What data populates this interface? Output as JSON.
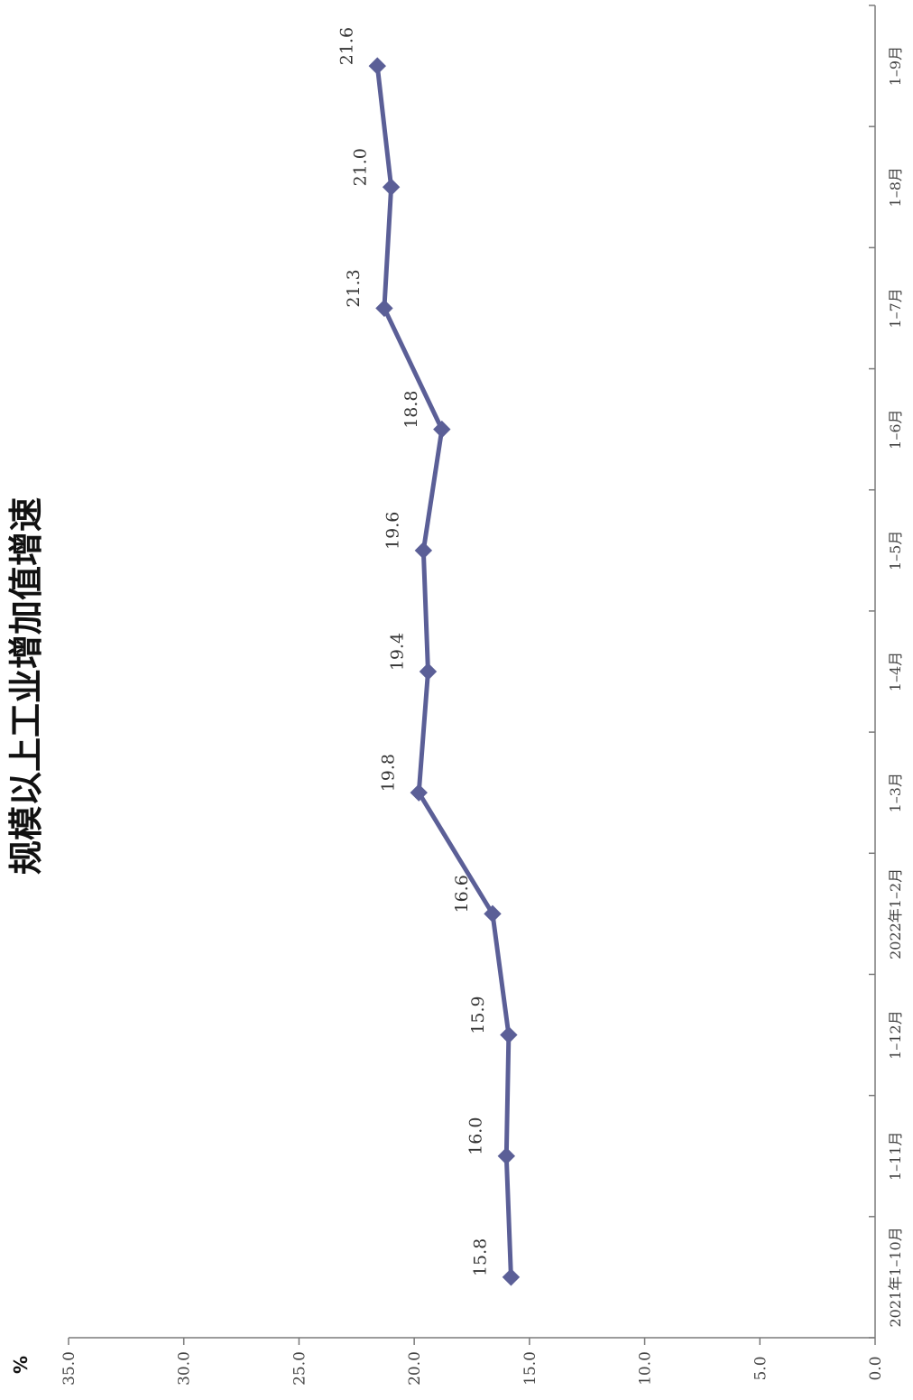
{
  "chart_data": {
    "type": "line",
    "title": "规模以上工业增加值增速",
    "ylabel": "%",
    "xlabel": "",
    "categories": [
      "2021年1–10月",
      "1–11月",
      "1–12月",
      "2022年1–2月",
      "1–3月",
      "1–4月",
      "1–5月",
      "1–6月",
      "1–7月",
      "1–8月",
      "1–9月"
    ],
    "series": [
      {
        "values": [
          15.8,
          16.0,
          15.9,
          16.6,
          19.8,
          19.4,
          19.6,
          18.8,
          21.3,
          21.0,
          21.6
        ]
      }
    ],
    "data_labels": [
      "15.8",
      "16.0",
      "15.9",
      "16.6",
      "19.8",
      "19.4",
      "19.6",
      "18.8",
      "21.3",
      "21.0",
      "21.6"
    ],
    "ylim": [
      0,
      35
    ],
    "yticks": [
      "0.0",
      "5.0",
      "10.0",
      "15.0",
      "20.0",
      "25.0",
      "30.0",
      "35.0"
    ],
    "grid": false,
    "legend": "none",
    "colors": {
      "line": "#5b5f97",
      "axis": "#7a7a7a"
    },
    "marker": "diamond"
  }
}
